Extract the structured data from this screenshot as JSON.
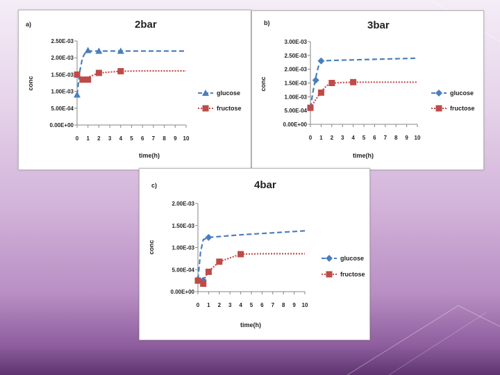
{
  "colors": {
    "glucose": "#4a7ebb",
    "fructose": "#be4b48",
    "axis": "#868686"
  },
  "chart_data": [
    {
      "type": "line",
      "panel_label": "a)",
      "title": "2bar",
      "xlabel": "time(h)",
      "ylabel": "conc",
      "xlim": [
        0,
        10
      ],
      "ylim": [
        0,
        0.0025
      ],
      "x_ticks": [
        "0",
        "1",
        "2",
        "3",
        "4",
        "5",
        "6",
        "7",
        "8",
        "9",
        "10"
      ],
      "y_ticks": [
        "0.00E+00",
        "5.00E-04",
        "1.00E-03",
        "1.50E-03",
        "2.00E-03",
        "2.50E-03"
      ],
      "legend_position": "right",
      "series": [
        {
          "name": "glucose",
          "marker": "triangle",
          "style": "dashed",
          "points": [
            [
              0,
              0.0009
            ],
            [
              1,
              0.00222
            ],
            [
              2,
              0.0022
            ],
            [
              4,
              0.0022
            ]
          ],
          "trend": [
            [
              0,
              0.0009
            ],
            [
              0.25,
              0.0016
            ],
            [
              0.5,
              0.002
            ],
            [
              0.75,
              0.00215
            ],
            [
              1,
              0.0022
            ],
            [
              2,
              0.0022
            ],
            [
              4,
              0.0022
            ],
            [
              6,
              0.0022
            ],
            [
              8,
              0.0022
            ],
            [
              10,
              0.0022
            ]
          ]
        },
        {
          "name": "fructose",
          "marker": "square",
          "style": "dotted",
          "points": [
            [
              0,
              0.0015
            ],
            [
              0.5,
              0.00135
            ],
            [
              1,
              0.00135
            ],
            [
              2,
              0.00155
            ],
            [
              4,
              0.0016
            ]
          ],
          "trend": [
            [
              0,
              0.0015
            ],
            [
              0.5,
              0.00138
            ],
            [
              1,
              0.00142
            ],
            [
              2,
              0.00155
            ],
            [
              4,
              0.0016
            ],
            [
              6,
              0.00161
            ],
            [
              8,
              0.00161
            ],
            [
              10,
              0.00161
            ]
          ]
        }
      ]
    },
    {
      "type": "line",
      "panel_label": "b)",
      "title": "3bar",
      "xlabel": "time(h)",
      "ylabel": "conc",
      "xlim": [
        0,
        10
      ],
      "ylim": [
        0,
        0.003
      ],
      "x_ticks": [
        "0",
        "1",
        "2",
        "3",
        "4",
        "5",
        "6",
        "7",
        "8",
        "9",
        "10"
      ],
      "y_ticks": [
        "0.00E+00",
        "5.00E-04",
        "1.00E-03",
        "1.50E-03",
        "2.00E-03",
        "2.50E-03",
        "3.00E-03"
      ],
      "legend_position": "right",
      "series": [
        {
          "name": "glucose",
          "marker": "diamond",
          "style": "dashed",
          "points": [
            [
              0,
              0.0006
            ],
            [
              0.5,
              0.0016
            ],
            [
              1,
              0.0023
            ]
          ],
          "trend": [
            [
              0,
              0.0006
            ],
            [
              0.25,
              0.0012
            ],
            [
              0.5,
              0.0017
            ],
            [
              0.75,
              0.0021
            ],
            [
              1,
              0.0023
            ],
            [
              2,
              0.00232
            ],
            [
              4,
              0.00234
            ],
            [
              6,
              0.00236
            ],
            [
              8,
              0.00238
            ],
            [
              10,
              0.0024
            ]
          ]
        },
        {
          "name": "fructose",
          "marker": "square",
          "style": "dotted",
          "points": [
            [
              0,
              0.0006
            ],
            [
              1,
              0.00115
            ],
            [
              2,
              0.0015
            ],
            [
              4,
              0.00153
            ]
          ],
          "trend": [
            [
              0,
              0.0006
            ],
            [
              0.5,
              0.0009
            ],
            [
              1,
              0.00118
            ],
            [
              1.5,
              0.0014
            ],
            [
              2,
              0.0015
            ],
            [
              4,
              0.00153
            ],
            [
              6,
              0.00153
            ],
            [
              8,
              0.00153
            ],
            [
              10,
              0.00153
            ]
          ]
        }
      ]
    },
    {
      "type": "line",
      "panel_label": "c)",
      "title": "4bar",
      "xlabel": "time(h)",
      "ylabel": "conc",
      "xlim": [
        0,
        10
      ],
      "ylim": [
        0,
        0.002
      ],
      "x_ticks": [
        "0",
        "1",
        "2",
        "3",
        "4",
        "5",
        "6",
        "7",
        "8",
        "9",
        "10"
      ],
      "y_ticks": [
        "0.00E+00",
        "5.00E-04",
        "1.00E-03",
        "1.50E-03",
        "2.00E-03"
      ],
      "legend_position": "right",
      "series": [
        {
          "name": "glucose",
          "marker": "diamond",
          "style": "dashed",
          "points": [
            [
              0,
              0.00028
            ],
            [
              0.5,
              0.00026
            ],
            [
              1,
              0.00123
            ]
          ],
          "trend": [
            [
              0,
              0.00028
            ],
            [
              0.25,
              0.0009
            ],
            [
              0.5,
              0.00118
            ],
            [
              1,
              0.00123
            ],
            [
              2,
              0.00125
            ],
            [
              4,
              0.00129
            ],
            [
              6,
              0.00132
            ],
            [
              8,
              0.00135
            ],
            [
              10,
              0.00138
            ]
          ]
        },
        {
          "name": "fructose",
          "marker": "square",
          "style": "dotted",
          "points": [
            [
              0,
              0.00025
            ],
            [
              0.5,
              0.00018
            ],
            [
              1,
              0.00045
            ],
            [
              2,
              0.00068
            ],
            [
              4,
              0.00085
            ]
          ],
          "trend": [
            [
              0,
              0.00025
            ],
            [
              0.5,
              0.00025
            ],
            [
              1,
              0.00046
            ],
            [
              2,
              0.00068
            ],
            [
              4,
              0.00085
            ],
            [
              6,
              0.00086
            ],
            [
              8,
              0.00086
            ],
            [
              10,
              0.00086
            ]
          ]
        }
      ]
    }
  ]
}
